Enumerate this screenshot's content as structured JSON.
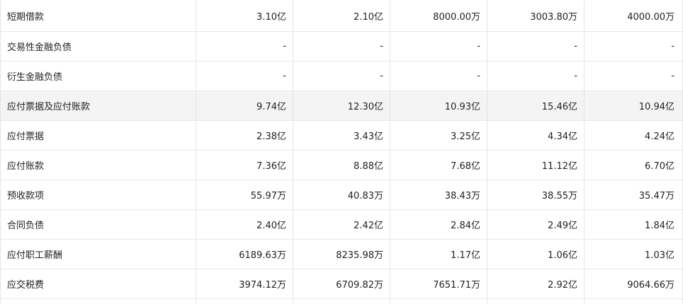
{
  "rows": [
    {
      "label": "短期借款",
      "values": [
        "3.10亿",
        "2.10亿",
        "8000.00万",
        "3003.80万",
        "4000.00万"
      ],
      "highlight": false
    },
    {
      "label": "交易性金融负债",
      "values": [
        "-",
        "-",
        "-",
        "-",
        "-"
      ],
      "highlight": false
    },
    {
      "label": "衍生金融负债",
      "values": [
        "-",
        "-",
        "-",
        "-",
        "-"
      ],
      "highlight": false
    },
    {
      "label": "应付票据及应付账款",
      "values": [
        "9.74亿",
        "12.30亿",
        "10.93亿",
        "15.46亿",
        "10.94亿"
      ],
      "highlight": true
    },
    {
      "label": "应付票据",
      "values": [
        "2.38亿",
        "3.43亿",
        "3.25亿",
        "4.34亿",
        "4.24亿"
      ],
      "highlight": false
    },
    {
      "label": "应付账款",
      "values": [
        "7.36亿",
        "8.88亿",
        "7.68亿",
        "11.12亿",
        "6.70亿"
      ],
      "highlight": false
    },
    {
      "label": "预收款项",
      "values": [
        "55.97万",
        "40.83万",
        "38.43万",
        "38.55万",
        "35.47万"
      ],
      "highlight": false
    },
    {
      "label": "合同负债",
      "values": [
        "2.40亿",
        "2.42亿",
        "2.84亿",
        "2.49亿",
        "1.84亿"
      ],
      "highlight": false
    },
    {
      "label": "应付职工薪酬",
      "values": [
        "6189.63万",
        "8235.98万",
        "1.17亿",
        "1.06亿",
        "1.03亿"
      ],
      "highlight": false
    },
    {
      "label": "应交税费",
      "values": [
        "3974.12万",
        "6709.82万",
        "7651.71万",
        "2.92亿",
        "9064.66万"
      ],
      "highlight": false
    }
  ]
}
